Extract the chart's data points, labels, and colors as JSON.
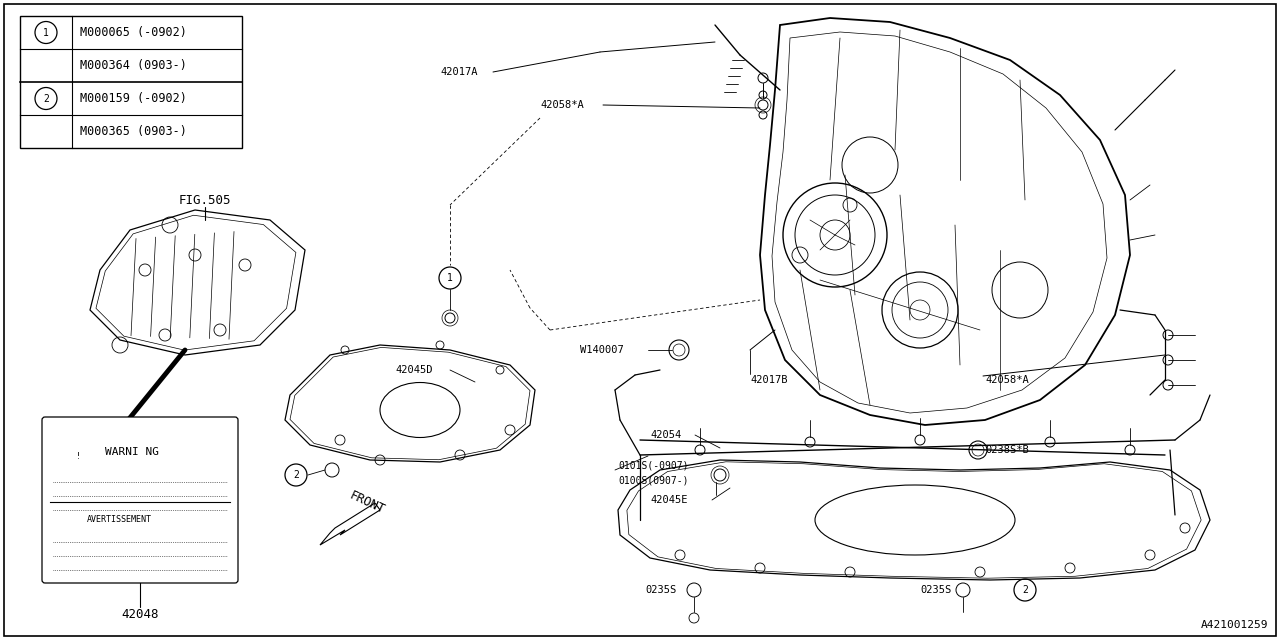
{
  "bg_color": "#ffffff",
  "line_color": "#000000",
  "diagram_id": "A421001259",
  "parts_table": {
    "circle1_parts": [
      "M000065 (-0902)",
      "M000364 (0903-)"
    ],
    "circle2_parts": [
      "M000159 (-0902)",
      "M000365 (0903-)"
    ]
  },
  "font_size_label": 7.5,
  "font_size_table": 8.5
}
